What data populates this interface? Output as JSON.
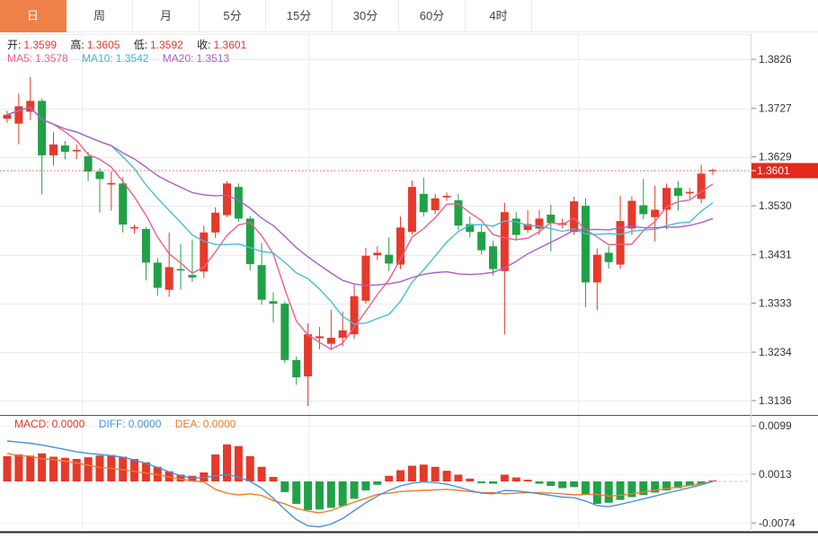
{
  "tabs": {
    "items": [
      {
        "label": "日",
        "selected": true
      },
      {
        "label": "周",
        "selected": false
      },
      {
        "label": "月",
        "selected": false
      },
      {
        "label": "5分",
        "selected": false
      },
      {
        "label": "15分",
        "selected": false
      },
      {
        "label": "30分",
        "selected": false
      },
      {
        "label": "60分",
        "selected": false
      },
      {
        "label": "4时",
        "selected": false
      }
    ]
  },
  "main_legend": {
    "ohlc": [
      {
        "label": "开:",
        "value": "1.3599"
      },
      {
        "label": "高:",
        "value": "1.3605"
      },
      {
        "label": "低:",
        "value": "1.3592"
      },
      {
        "label": "收:",
        "value": "1.3601"
      }
    ],
    "ma": [
      {
        "label": "MA5:",
        "value": "1.3578"
      },
      {
        "label": "MA10:",
        "value": "1.3542"
      },
      {
        "label": "MA20:",
        "value": "1.3513"
      }
    ]
  },
  "macd_legend": [
    {
      "label": "MACD:",
      "value": "0.0000"
    },
    {
      "label": "DIFF:",
      "value": "0.0000"
    },
    {
      "label": "DEA:",
      "value": "0.0000"
    }
  ],
  "colors": {
    "up": "#e5392b",
    "down": "#21a147",
    "ma5": "#ef5d8a",
    "ma10": "#3fbfd8",
    "ma20": "#ab5fc6",
    "diff_line": "#4a90d9",
    "dea_line": "#ee7d2c",
    "last_price_line": "#f0544a",
    "badge": "#e32a1c",
    "tab_active": "#ee8147",
    "grid": "#ebebeb",
    "axis_text": "#333333"
  },
  "chart_data": {
    "type": "candlestick",
    "title": "",
    "legend_position": "top-left",
    "grid": true,
    "main": {
      "y_ticks": [
        "1.3826",
        "1.3727",
        "1.3629",
        "1.3530",
        "1.3431",
        "1.3333",
        "1.3234",
        "1.3136"
      ],
      "price_max": 1.3877,
      "price_min": 1.3107,
      "last_price": "1.3601",
      "ma_periods": [
        5,
        10,
        20
      ],
      "candles_ohlc": [
        [
          1.3706,
          1.3722,
          1.3698,
          1.3714
        ],
        [
          1.3696,
          1.3757,
          1.3654,
          1.3731
        ],
        [
          1.372,
          1.379,
          1.3703,
          1.3742
        ],
        [
          1.3742,
          1.3747,
          1.3553,
          1.3632
        ],
        [
          1.3632,
          1.3679,
          1.3611,
          1.3654
        ],
        [
          1.3652,
          1.3661,
          1.3624,
          1.3639
        ],
        [
          1.364,
          1.3654,
          1.3624,
          1.3643
        ],
        [
          1.363,
          1.3639,
          1.358,
          1.3599
        ],
        [
          1.3599,
          1.3606,
          1.3516,
          1.3584
        ],
        [
          1.3573,
          1.3599,
          1.352,
          1.3576
        ],
        [
          1.3575,
          1.3588,
          1.3476,
          1.3492
        ],
        [
          1.3484,
          1.3492,
          1.3474,
          1.3487
        ],
        [
          1.3483,
          1.3487,
          1.3379,
          1.3415
        ],
        [
          1.3415,
          1.3425,
          1.3348,
          1.3364
        ],
        [
          1.336,
          1.3476,
          1.3346,
          1.3406
        ],
        [
          1.3402,
          1.3452,
          1.336,
          1.3399
        ],
        [
          1.339,
          1.3462,
          1.3376,
          1.3385
        ],
        [
          1.3397,
          1.3489,
          1.3384,
          1.3476
        ],
        [
          1.3476,
          1.3527,
          1.3465,
          1.3516
        ],
        [
          1.3511,
          1.358,
          1.3507,
          1.3575
        ],
        [
          1.3568,
          1.3575,
          1.3497,
          1.3504
        ],
        [
          1.3504,
          1.3509,
          1.3399,
          1.3412
        ],
        [
          1.341,
          1.3455,
          1.333,
          1.334
        ],
        [
          1.3337,
          1.3355,
          1.3294,
          1.3332
        ],
        [
          1.3332,
          1.3337,
          1.3212,
          1.3218
        ],
        [
          1.3218,
          1.3225,
          1.3168,
          1.3183
        ],
        [
          1.3185,
          1.3292,
          1.3125,
          1.327
        ],
        [
          1.3262,
          1.3285,
          1.324,
          1.3266
        ],
        [
          1.3251,
          1.3319,
          1.3238,
          1.3263
        ],
        [
          1.3263,
          1.3316,
          1.3246,
          1.3278
        ],
        [
          1.327,
          1.337,
          1.3261,
          1.3347
        ],
        [
          1.3338,
          1.3445,
          1.3332,
          1.3429
        ],
        [
          1.343,
          1.3448,
          1.342,
          1.3435
        ],
        [
          1.3431,
          1.3466,
          1.3398,
          1.3413
        ],
        [
          1.3411,
          1.3508,
          1.3402,
          1.3486
        ],
        [
          1.3477,
          1.3581,
          1.3471,
          1.3568
        ],
        [
          1.3554,
          1.3587,
          1.3508,
          1.3517
        ],
        [
          1.3521,
          1.3554,
          1.3513,
          1.3545
        ],
        [
          1.3547,
          1.3557,
          1.354,
          1.355
        ],
        [
          1.3541,
          1.3554,
          1.3481,
          1.349
        ],
        [
          1.3493,
          1.3508,
          1.3466,
          1.3477
        ],
        [
          1.3477,
          1.349,
          1.3431,
          1.344
        ],
        [
          1.3448,
          1.3459,
          1.3389,
          1.3402
        ],
        [
          1.3398,
          1.3536,
          1.327,
          1.3517
        ],
        [
          1.3504,
          1.3517,
          1.3459,
          1.3471
        ],
        [
          1.3481,
          1.3521,
          1.3475,
          1.3493
        ],
        [
          1.3484,
          1.3521,
          1.3471,
          1.3504
        ],
        [
          1.3512,
          1.3532,
          1.3438,
          1.3495
        ],
        [
          1.3491,
          1.3504,
          1.3484,
          1.3495
        ],
        [
          1.3477,
          1.3548,
          1.3471,
          1.3539
        ],
        [
          1.353,
          1.3545,
          1.3325,
          1.3375
        ],
        [
          1.3375,
          1.3444,
          1.3319,
          1.3431
        ],
        [
          1.3435,
          1.3448,
          1.3403,
          1.3416
        ],
        [
          1.3411,
          1.355,
          1.3402,
          1.3499
        ],
        [
          1.3484,
          1.3549,
          1.3471,
          1.354
        ],
        [
          1.3531,
          1.3584,
          1.3503,
          1.3513
        ],
        [
          1.3507,
          1.3571,
          1.3458,
          1.3522
        ],
        [
          1.3522,
          1.3575,
          1.3483,
          1.3566
        ],
        [
          1.3566,
          1.358,
          1.352,
          1.355
        ],
        [
          1.3555,
          1.3566,
          1.3544,
          1.3558
        ],
        [
          1.3544,
          1.3613,
          1.3535,
          1.3595
        ],
        [
          1.3599,
          1.3605,
          1.3592,
          1.3601
        ]
      ]
    },
    "macd": {
      "y_ticks": [
        "0.0099",
        "0.0013",
        "-0.0074"
      ],
      "value_max": 0.0118,
      "value_min": -0.009,
      "histogram": [
        0.0045,
        0.0048,
        0.0046,
        0.005,
        0.0044,
        0.0042,
        0.004,
        0.0043,
        0.0046,
        0.0047,
        0.0044,
        0.004,
        0.0034,
        0.0026,
        0.0018,
        0.0012,
        0.001,
        0.0016,
        0.0048,
        0.0066,
        0.0063,
        0.0045,
        0.0026,
        0.0008,
        -0.0019,
        -0.004,
        -0.0051,
        -0.005,
        -0.0047,
        -0.0044,
        -0.0031,
        -0.0016,
        -0.0006,
        0.001,
        0.002,
        0.0028,
        0.003,
        0.0026,
        0.0019,
        0.0012,
        0.0005,
        -0.0003,
        -0.0004,
        0.0012,
        0.0007,
        0.0003,
        -0.0004,
        -0.0008,
        -0.0012,
        -0.001,
        -0.0024,
        -0.004,
        -0.0038,
        -0.0033,
        -0.0028,
        -0.0024,
        -0.002,
        -0.0016,
        -0.0012,
        -0.0008,
        -0.0004,
        0.0
      ],
      "diff": [
        0.0072,
        0.007,
        0.0068,
        0.0065,
        0.0061,
        0.0057,
        0.0053,
        0.005,
        0.0048,
        0.0046,
        0.0043,
        0.0038,
        0.0032,
        0.0025,
        0.0017,
        0.001,
        0.0006,
        0.0007,
        0.001,
        0.0012,
        0.0008,
        0.0,
        -0.0012,
        -0.003,
        -0.005,
        -0.0068,
        -0.0079,
        -0.0081,
        -0.0076,
        -0.0066,
        -0.0052,
        -0.0038,
        -0.0026,
        -0.0016,
        -0.0008,
        -0.0003,
        -0.0001,
        -0.0002,
        -0.0005,
        -0.001,
        -0.0016,
        -0.0021,
        -0.0022,
        -0.0016,
        -0.0017,
        -0.0019,
        -0.0022,
        -0.0025,
        -0.0028,
        -0.0029,
        -0.0035,
        -0.0043,
        -0.0045,
        -0.0041,
        -0.0036,
        -0.0031,
        -0.0026,
        -0.0021,
        -0.0016,
        -0.0011,
        -0.0006,
        0.0
      ],
      "dea": [
        0.005,
        0.0046,
        0.0045,
        0.004,
        0.0039,
        0.0036,
        0.0033,
        0.0029,
        0.0025,
        0.0023,
        0.0021,
        0.0018,
        0.0015,
        0.0012,
        0.0008,
        0.0004,
        0.0001,
        -0.0001,
        -0.0014,
        -0.0021,
        -0.0024,
        -0.0022,
        -0.0025,
        -0.0034,
        -0.004,
        -0.0048,
        -0.0053,
        -0.0056,
        -0.0052,
        -0.0044,
        -0.0037,
        -0.003,
        -0.0023,
        -0.0021,
        -0.0018,
        -0.0017,
        -0.0016,
        -0.0015,
        -0.0014,
        -0.0016,
        -0.0018,
        -0.002,
        -0.002,
        -0.0022,
        -0.0021,
        -0.002,
        -0.002,
        -0.0021,
        -0.0022,
        -0.0024,
        -0.0023,
        -0.0023,
        -0.0026,
        -0.0025,
        -0.0022,
        -0.0019,
        -0.0016,
        -0.0013,
        -0.001,
        -0.0007,
        -0.0004,
        0.0
      ]
    }
  }
}
